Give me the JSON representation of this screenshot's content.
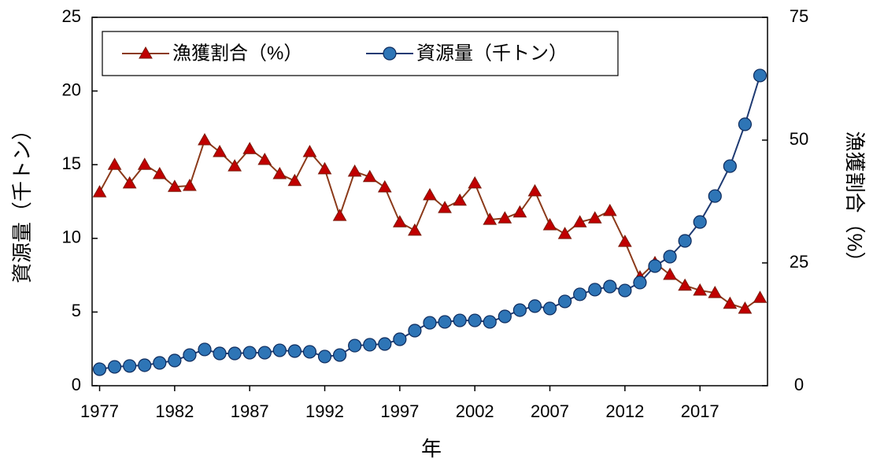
{
  "chart_data": {
    "type": "line",
    "x_label": "年",
    "y_label": "資源量（千トン）",
    "y2_label": "漁獲割合（%）",
    "x": [
      1977,
      1978,
      1979,
      1980,
      1981,
      1982,
      1983,
      1984,
      1985,
      1986,
      1987,
      1988,
      1989,
      1990,
      1991,
      1992,
      1993,
      1994,
      1995,
      1996,
      1997,
      1998,
      1999,
      2000,
      2001,
      2002,
      2003,
      2004,
      2005,
      2006,
      2007,
      2008,
      2009,
      2010,
      2011,
      2012,
      2013,
      2014,
      2015,
      2016,
      2017,
      2018,
      2019,
      2020,
      2021
    ],
    "xlim": [
      1976.5,
      2021.5
    ],
    "xticks": [
      1977,
      1982,
      1987,
      1992,
      1997,
      2002,
      2007,
      2012,
      2017
    ],
    "ylim": [
      0,
      25
    ],
    "yticks": [
      0,
      5,
      10,
      15,
      20,
      25
    ],
    "y2lim": [
      0,
      75
    ],
    "y2ticks": [
      0,
      25,
      50,
      75
    ],
    "legend": "upper left",
    "series": [
      {
        "name": "漁獲割合（%）",
        "axis": "y2",
        "marker": "triangle",
        "color": "#8b3a1a",
        "marker_color": "#c00000",
        "values": [
          39.4,
          45.0,
          41.2,
          45.0,
          43.1,
          40.5,
          40.7,
          50.0,
          47.6,
          44.7,
          48.2,
          46.0,
          43.1,
          41.7,
          47.6,
          44.1,
          34.6,
          43.6,
          42.5,
          40.4,
          33.3,
          31.6,
          38.8,
          36.2,
          37.7,
          41.2,
          33.8,
          34.1,
          35.3,
          39.6,
          32.7,
          30.9,
          33.3,
          34.1,
          35.6,
          29.3,
          22.1,
          25.0,
          22.6,
          20.4,
          19.4,
          18.9,
          16.7,
          15.7,
          17.9
        ]
      },
      {
        "name": "資源量（千トン）",
        "axis": "y",
        "marker": "circle",
        "color": "#1f3b73",
        "marker_color": "#2e75b6",
        "values": [
          1.12,
          1.28,
          1.34,
          1.39,
          1.55,
          1.71,
          2.08,
          2.46,
          2.19,
          2.19,
          2.24,
          2.24,
          2.4,
          2.35,
          2.3,
          1.98,
          2.08,
          2.72,
          2.78,
          2.83,
          3.15,
          3.74,
          4.27,
          4.33,
          4.43,
          4.43,
          4.33,
          4.7,
          5.13,
          5.4,
          5.24,
          5.72,
          6.2,
          6.52,
          6.73,
          6.46,
          7.0,
          8.12,
          8.76,
          9.83,
          11.11,
          12.87,
          14.9,
          17.74,
          21.05
        ]
      }
    ]
  }
}
